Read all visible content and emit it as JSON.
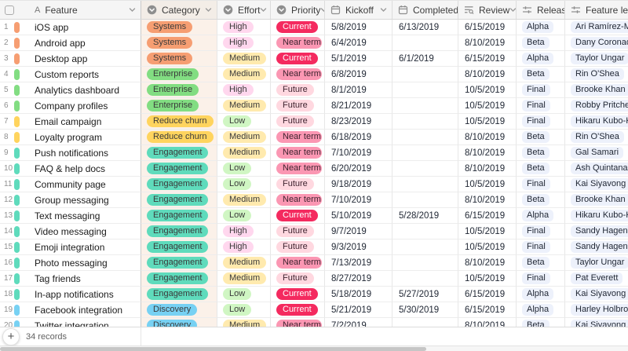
{
  "header": {
    "columns": [
      {
        "id": "feature",
        "label": "Feature",
        "icon": "text-field-icon",
        "menu": true
      },
      {
        "id": "category",
        "label": "Category",
        "icon": "single-select-icon",
        "menu": true
      },
      {
        "id": "effort",
        "label": "Effort",
        "icon": "single-select-icon",
        "menu": true
      },
      {
        "id": "priority",
        "label": "Priority",
        "icon": "single-select-icon",
        "menu": true
      },
      {
        "id": "kickoff",
        "label": "Kickoff",
        "icon": "calendar-icon",
        "menu": true
      },
      {
        "id": "completed",
        "label": "Completed",
        "icon": "calendar-icon",
        "menu": true
      },
      {
        "id": "review",
        "label": "Review",
        "icon": "lookup-icon",
        "menu": true
      },
      {
        "id": "release",
        "label": "Release",
        "icon": "sliders-icon",
        "menu": true
      },
      {
        "id": "lead",
        "label": "Feature lead",
        "icon": "sliders-icon",
        "menu": false
      }
    ]
  },
  "palette": {
    "category": {
      "Systems": "#F69E72",
      "Enterprise": "#82DD82",
      "Reduce churn": "#FFD45E",
      "Engagement": "#5FDBBC",
      "Discovery": "#77D1F3"
    },
    "effort": {
      "High": "#FFD7EE",
      "Medium": "#FFEAAE",
      "Low": "#D0F6C3"
    },
    "priority_bg": {
      "Current": "#F42A5F",
      "Near term": "#FB97B3",
      "Future": "#FFD8E0"
    },
    "priority_fg": {
      "Current": "#FFFFFF",
      "Near term": "#3F2430",
      "Future": "#3F2430"
    },
    "chip_bg": "#EDF1FB",
    "category_cell_bg": "#FBF1E9"
  },
  "rows": [
    {
      "num": "1",
      "feature": "iOS app",
      "category": "Systems",
      "effort": "High",
      "priority": "Current",
      "kickoff": "5/8/2019",
      "completed": "6/13/2019",
      "review": "6/15/2019",
      "release": "Alpha",
      "lead": "Ari Ramírez-Medina"
    },
    {
      "num": "2",
      "feature": "Android app",
      "category": "Systems",
      "effort": "High",
      "priority": "Near term",
      "kickoff": "6/4/2019",
      "completed": "",
      "review": "8/10/2019",
      "release": "Beta",
      "lead": "Dany Coronado"
    },
    {
      "num": "3",
      "feature": "Desktop app",
      "category": "Systems",
      "effort": "Medium",
      "priority": "Current",
      "kickoff": "5/1/2019",
      "completed": "6/1/2019",
      "review": "6/15/2019",
      "release": "Alpha",
      "lead": "Taylor Ungar"
    },
    {
      "num": "4",
      "feature": "Custom reports",
      "category": "Enterprise",
      "effort": "Medium",
      "priority": "Near term",
      "kickoff": "6/8/2019",
      "completed": "",
      "review": "8/10/2019",
      "release": "Beta",
      "lead": "Rin O'Shea"
    },
    {
      "num": "5",
      "feature": "Analytics dashboard",
      "category": "Enterprise",
      "effort": "High",
      "priority": "Future",
      "kickoff": "8/1/2019",
      "completed": "",
      "review": "10/5/2019",
      "release": "Final",
      "lead": "Brooke Khan"
    },
    {
      "num": "6",
      "feature": "Company profiles",
      "category": "Enterprise",
      "effort": "Medium",
      "priority": "Future",
      "kickoff": "8/21/2019",
      "completed": "",
      "review": "10/5/2019",
      "release": "Final",
      "lead": "Robby Pritchett"
    },
    {
      "num": "7",
      "feature": "Email campaign",
      "category": "Reduce churn",
      "effort": "Low",
      "priority": "Future",
      "kickoff": "8/23/2019",
      "completed": "",
      "review": "10/5/2019",
      "release": "Final",
      "lead": "Hikaru Kubo-Kingsley"
    },
    {
      "num": "8",
      "feature": "Loyalty program",
      "category": "Reduce churn",
      "effort": "Medium",
      "priority": "Near term",
      "kickoff": "6/18/2019",
      "completed": "",
      "review": "8/10/2019",
      "release": "Beta",
      "lead": "Rin O'Shea"
    },
    {
      "num": "9",
      "feature": "Push notifications",
      "category": "Engagement",
      "effort": "Medium",
      "priority": "Near term",
      "kickoff": "7/10/2019",
      "completed": "",
      "review": "8/10/2019",
      "release": "Beta",
      "lead": "Gal Samari"
    },
    {
      "num": "10",
      "feature": "FAQ & help docs",
      "category": "Engagement",
      "effort": "Low",
      "priority": "Near term",
      "kickoff": "6/20/2019",
      "completed": "",
      "review": "8/10/2019",
      "release": "Beta",
      "lead": "Ash Quintana"
    },
    {
      "num": "11",
      "feature": "Community page",
      "category": "Engagement",
      "effort": "Low",
      "priority": "Future",
      "kickoff": "9/18/2019",
      "completed": "",
      "review": "10/5/2019",
      "release": "Final",
      "lead": "Kai Siyavong"
    },
    {
      "num": "12",
      "feature": "Group messaging",
      "category": "Engagement",
      "effort": "Medium",
      "priority": "Near term",
      "kickoff": "7/10/2019",
      "completed": "",
      "review": "8/10/2019",
      "release": "Beta",
      "lead": "Brooke Khan"
    },
    {
      "num": "13",
      "feature": "Text messaging",
      "category": "Engagement",
      "effort": "Low",
      "priority": "Current",
      "kickoff": "5/10/2019",
      "completed": "5/28/2019",
      "review": "6/15/2019",
      "release": "Alpha",
      "lead": "Hikaru Kubo-Kingsley"
    },
    {
      "num": "14",
      "feature": "Video messaging",
      "category": "Engagement",
      "effort": "High",
      "priority": "Future",
      "kickoff": "9/7/2019",
      "completed": "",
      "review": "10/5/2019",
      "release": "Final",
      "lead": "Sandy Hagen"
    },
    {
      "num": "15",
      "feature": "Emoji integration",
      "category": "Engagement",
      "effort": "High",
      "priority": "Future",
      "kickoff": "9/3/2019",
      "completed": "",
      "review": "10/5/2019",
      "release": "Final",
      "lead": "Sandy Hagen"
    },
    {
      "num": "16",
      "feature": "Photo messaging",
      "category": "Engagement",
      "effort": "Medium",
      "priority": "Near term",
      "kickoff": "7/13/2019",
      "completed": "",
      "review": "8/10/2019",
      "release": "Beta",
      "lead": "Taylor Ungar"
    },
    {
      "num": "17",
      "feature": "Tag friends",
      "category": "Engagement",
      "effort": "Medium",
      "priority": "Future",
      "kickoff": "8/27/2019",
      "completed": "",
      "review": "10/5/2019",
      "release": "Final",
      "lead": "Pat Everett"
    },
    {
      "num": "18",
      "feature": "In-app notifications",
      "category": "Engagement",
      "effort": "Low",
      "priority": "Current",
      "kickoff": "5/18/2019",
      "completed": "5/27/2019",
      "review": "6/15/2019",
      "release": "Alpha",
      "lead": "Kai Siyavong"
    },
    {
      "num": "19",
      "feature": "Facebook integration",
      "category": "Discovery",
      "effort": "Low",
      "priority": "Current",
      "kickoff": "5/21/2019",
      "completed": "5/30/2019",
      "review": "6/15/2019",
      "release": "Alpha",
      "lead": "Harley Holbrook"
    },
    {
      "num": "20",
      "feature": "Twitter integration",
      "category": "Discovery",
      "effort": "Medium",
      "priority": "Near term",
      "kickoff": "7/2/2019",
      "completed": "",
      "review": "8/10/2019",
      "release": "Beta",
      "lead": "Kai Siyavong"
    }
  ],
  "footer": {
    "add_button": "+",
    "record_count": "34 records"
  }
}
